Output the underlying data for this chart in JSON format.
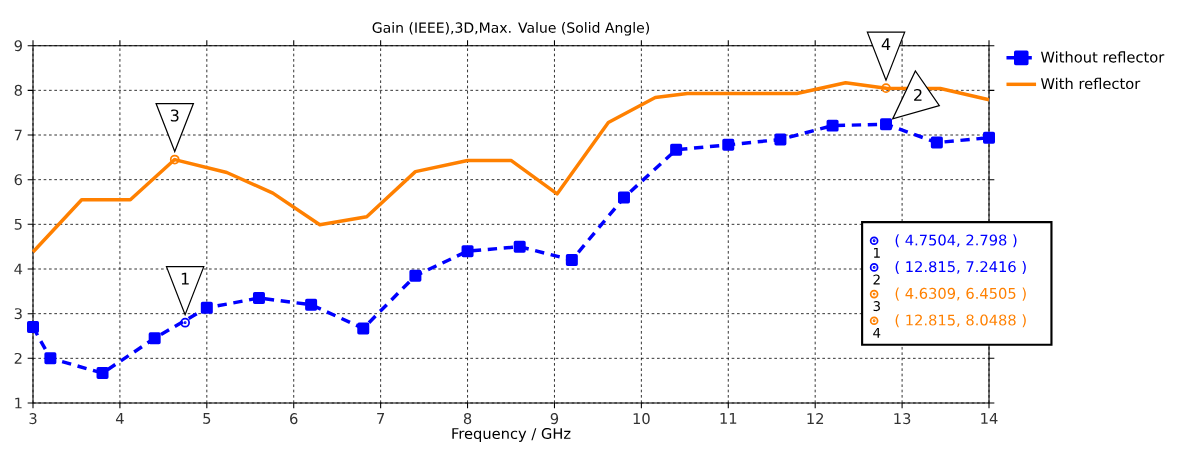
{
  "chart_data": {
    "type": "line",
    "title": "Gain (IEEE),3D,Max. Value (Solid Angle)",
    "xlabel": "Frequency / GHz",
    "xlim": [
      3,
      14
    ],
    "ylim": [
      1,
      9
    ],
    "xticks": [
      3,
      4,
      5,
      6,
      7,
      8,
      9,
      10,
      11,
      12,
      13,
      14
    ],
    "yticks": [
      1,
      2,
      3,
      4,
      5,
      6,
      7,
      8,
      9
    ],
    "grid": true,
    "legend": "right",
    "series": [
      {
        "name": "Without reflector",
        "color": "#0000ff",
        "marker": "square",
        "line_style": "dashed",
        "x": [
          3.0,
          3.2,
          3.8,
          4.4,
          5.0,
          5.6,
          6.2,
          6.8,
          7.4,
          8.0,
          8.6,
          9.2,
          9.8,
          10.4,
          11.0,
          11.6,
          12.2,
          12.815,
          13.4,
          14.0
        ],
        "values": [
          2.7,
          2.0,
          1.67,
          2.45,
          3.13,
          3.35,
          3.2,
          2.67,
          3.85,
          4.4,
          4.5,
          4.2,
          5.6,
          6.67,
          6.78,
          6.9,
          7.21,
          7.2416,
          6.83,
          6.94
        ]
      },
      {
        "name": "With reflector",
        "color": "#ff8000",
        "marker": "none",
        "line_style": "solid",
        "x": [
          3.0,
          3.56,
          4.12,
          4.63,
          5.23,
          5.76,
          6.3,
          6.84,
          7.4,
          8.0,
          8.5,
          9.03,
          9.62,
          10.16,
          10.53,
          11.79,
          12.35,
          12.815,
          13.44,
          14.0
        ],
        "values": [
          4.38,
          5.55,
          5.55,
          6.45,
          6.16,
          5.7,
          4.99,
          5.17,
          6.18,
          6.43,
          6.43,
          5.68,
          7.28,
          7.84,
          7.93,
          7.93,
          8.17,
          8.0488,
          8.04,
          7.79
        ]
      }
    ],
    "annotations": [
      {
        "text": "1",
        "x": 4.7504,
        "y": 2.798
      },
      {
        "text": "2",
        "x": 12.815,
        "y": 7.2416
      },
      {
        "text": "3",
        "x": 4.6309,
        "y": 6.4505
      },
      {
        "text": "4",
        "x": 12.815,
        "y": 8.0488
      },
      "( 4.7504, 2.798 )",
      "( 12.815, 7.2416 )",
      "( 4.6309, 6.4505 )",
      "( 12.815, 8.0488 )"
    ]
  }
}
